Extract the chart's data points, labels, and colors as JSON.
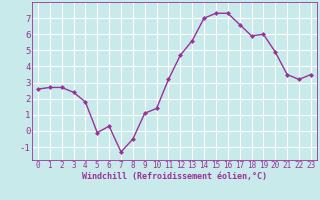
{
  "x": [
    0,
    1,
    2,
    3,
    4,
    5,
    6,
    7,
    8,
    9,
    10,
    11,
    12,
    13,
    14,
    15,
    16,
    17,
    18,
    19,
    20,
    21,
    22,
    23
  ],
  "y": [
    2.6,
    2.7,
    2.7,
    2.4,
    1.8,
    -0.1,
    0.3,
    -1.3,
    -0.5,
    1.1,
    1.4,
    3.2,
    4.7,
    5.6,
    7.0,
    7.3,
    7.3,
    6.6,
    5.9,
    6.0,
    4.9,
    3.5,
    3.2,
    3.5
  ],
  "line_color": "#993399",
  "marker": "D",
  "marker_size": 2,
  "bg_color": "#c8eaea",
  "grid_color": "#ffffff",
  "xlabel": "Windchill (Refroidissement éolien,°C)",
  "xlabel_color": "#993399",
  "tick_color": "#993399",
  "xlim": [
    -0.5,
    23.5
  ],
  "ylim": [
    -1.8,
    8.0
  ],
  "yticks": [
    -1,
    0,
    1,
    2,
    3,
    4,
    5,
    6,
    7
  ],
  "xticks": [
    0,
    1,
    2,
    3,
    4,
    5,
    6,
    7,
    8,
    9,
    10,
    11,
    12,
    13,
    14,
    15,
    16,
    17,
    18,
    19,
    20,
    21,
    22,
    23
  ],
  "line_width": 1.0,
  "tick_fontsize": 5.5,
  "xlabel_fontsize": 6.0,
  "ytick_fontsize": 6.5
}
